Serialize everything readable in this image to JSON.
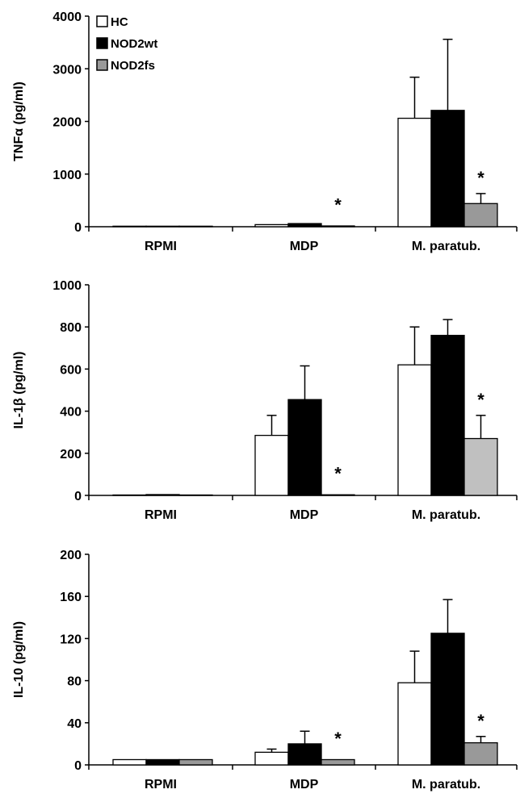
{
  "legend": {
    "placement": "top-left",
    "items": [
      {
        "label": "HC",
        "color": "#ffffff"
      },
      {
        "label": "NOD2wt",
        "color": "#000000"
      },
      {
        "label": "NOD2fs",
        "color": "#999999"
      }
    ]
  },
  "colors": {
    "hc": "#ffffff",
    "nod2wt": "#000000",
    "nod2fs": "#999999",
    "nod2fs_light": "#c0c0c0"
  },
  "chart_data": [
    {
      "type": "bar",
      "ylabel": "TNFα (pg/ml)",
      "categories": [
        "RPMI",
        "MDP",
        "M. paratub."
      ],
      "ylim": [
        0,
        4000
      ],
      "yticks": [
        0,
        1000,
        2000,
        3000,
        4000
      ],
      "grid": false,
      "series": [
        {
          "name": "HC",
          "values": [
            10,
            40,
            2060
          ],
          "errors": [
            5,
            10,
            780
          ]
        },
        {
          "name": "NOD2wt",
          "values": [
            10,
            60,
            2210
          ],
          "errors": [
            5,
            15,
            1350
          ]
        },
        {
          "name": "NOD2fs",
          "values": [
            10,
            15,
            440
          ],
          "errors": [
            5,
            5,
            190
          ]
        }
      ],
      "significance": [
        {
          "category": "MDP",
          "series": "NOD2fs",
          "label": "*"
        },
        {
          "category": "M. paratub.",
          "series": "NOD2fs",
          "label": "*"
        }
      ]
    },
    {
      "type": "bar",
      "ylabel": "IL-1β (pg/ml)",
      "categories": [
        "RPMI",
        "MDP",
        "M. paratub."
      ],
      "ylim": [
        0,
        1000
      ],
      "yticks": [
        0,
        200,
        400,
        600,
        800,
        1000
      ],
      "grid": false,
      "series": [
        {
          "name": "HC",
          "values": [
            2,
            285,
            620
          ],
          "errors": [
            1,
            95,
            180
          ]
        },
        {
          "name": "NOD2wt",
          "values": [
            4,
            455,
            760
          ],
          "errors": [
            3,
            160,
            75
          ]
        },
        {
          "name": "NOD2fs",
          "values": [
            2,
            3,
            270
          ],
          "errors": [
            1,
            2,
            110
          ]
        }
      ],
      "significance": [
        {
          "category": "MDP",
          "series": "NOD2fs",
          "label": "*"
        },
        {
          "category": "M. paratub.",
          "series": "NOD2fs",
          "label": "*"
        }
      ]
    },
    {
      "type": "bar",
      "ylabel": "IL-10 (pg/ml)",
      "categories": [
        "RPMI",
        "MDP",
        "M. paratub."
      ],
      "ylim": [
        0,
        200
      ],
      "yticks": [
        0,
        40,
        80,
        120,
        160,
        200
      ],
      "grid": false,
      "series": [
        {
          "name": "HC",
          "values": [
            5,
            12,
            78
          ],
          "errors": [
            0.5,
            3,
            30
          ]
        },
        {
          "name": "NOD2wt",
          "values": [
            5,
            20,
            125
          ],
          "errors": [
            0.5,
            12,
            32
          ]
        },
        {
          "name": "NOD2fs",
          "values": [
            5,
            5,
            21
          ],
          "errors": [
            0.5,
            0.5,
            6
          ]
        }
      ],
      "significance": [
        {
          "category": "MDP",
          "series": "NOD2fs",
          "label": "*"
        },
        {
          "category": "M. paratub.",
          "series": "NOD2fs",
          "label": "*"
        }
      ]
    }
  ]
}
